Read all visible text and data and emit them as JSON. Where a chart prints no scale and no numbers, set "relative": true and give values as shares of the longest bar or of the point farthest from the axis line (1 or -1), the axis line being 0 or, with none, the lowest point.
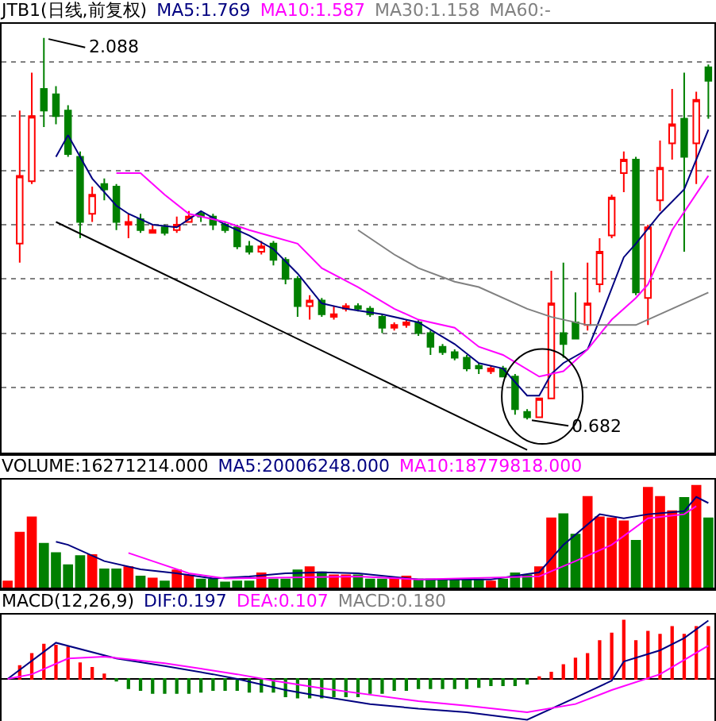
{
  "chart_data": [
    {
      "type": "candlestick",
      "title": "JTB1(日线,前复权)",
      "grid": "y",
      "ylim": [
        0.56,
        2.14
      ],
      "yticks": [
        {
          "value": 0.8,
          "label": null
        },
        {
          "value": 1.0,
          "label": null
        },
        {
          "value": 1.2,
          "label": null
        },
        {
          "value": 1.4,
          "label": null
        },
        {
          "value": 1.6,
          "label": null
        },
        {
          "value": 1.8,
          "label": null
        },
        {
          "value": 2.0,
          "label": null
        }
      ],
      "categories": [
        null,
        null,
        null,
        null,
        null,
        null,
        null,
        null,
        null,
        null,
        null,
        null,
        null,
        null,
        null,
        null,
        null,
        null,
        null,
        null,
        null,
        null,
        null,
        null,
        null,
        null,
        null,
        null,
        null,
        null,
        null,
        null,
        null,
        null,
        null,
        null,
        null,
        null,
        null,
        null,
        null,
        null,
        null,
        null,
        null,
        null,
        null,
        null,
        null,
        null,
        null,
        null,
        null,
        null,
        null,
        null,
        null,
        null,
        null
      ],
      "ohlc": [
        null,
        [
          1.33,
          1.82,
          1.26,
          1.58
        ],
        [
          1.56,
          1.96,
          1.55,
          1.8
        ],
        [
          1.9,
          2.088,
          1.76,
          1.82
        ],
        [
          1.88,
          1.91,
          1.77,
          1.8
        ],
        [
          1.82,
          1.84,
          1.65,
          1.66
        ],
        [
          1.65,
          1.67,
          1.35,
          1.41
        ],
        [
          1.44,
          1.54,
          1.41,
          1.51
        ],
        [
          1.55,
          1.57,
          1.49,
          1.53
        ],
        [
          1.54,
          1.55,
          1.38,
          1.41
        ],
        [
          1.4,
          1.44,
          1.35,
          1.41
        ],
        [
          1.42,
          1.44,
          1.37,
          1.38
        ],
        [
          1.37,
          1.4,
          1.37,
          1.38
        ],
        [
          1.39,
          1.4,
          1.36,
          1.37
        ],
        [
          1.38,
          1.43,
          1.37,
          1.4
        ],
        [
          1.41,
          1.45,
          1.41,
          1.43
        ],
        [
          1.44,
          1.45,
          1.41,
          1.43
        ],
        [
          1.43,
          1.44,
          1.38,
          1.4
        ],
        [
          1.4,
          1.41,
          1.37,
          1.38
        ],
        [
          1.39,
          1.4,
          1.31,
          1.32
        ],
        [
          1.32,
          1.34,
          1.29,
          1.3
        ],
        [
          1.3,
          1.34,
          1.29,
          1.32
        ],
        [
          1.33,
          1.34,
          1.25,
          1.27
        ],
        [
          1.27,
          1.28,
          1.18,
          1.2
        ],
        [
          1.2,
          1.21,
          1.06,
          1.1
        ],
        [
          1.1,
          1.14,
          1.05,
          1.12
        ],
        [
          1.12,
          1.13,
          1.06,
          1.07
        ],
        [
          1.06,
          1.1,
          1.05,
          1.07
        ],
        [
          1.09,
          1.11,
          1.08,
          1.1
        ],
        [
          1.1,
          1.11,
          1.08,
          1.09
        ],
        [
          1.09,
          1.1,
          1.06,
          1.07
        ],
        [
          1.06,
          1.07,
          1.0,
          1.02
        ],
        [
          1.02,
          1.04,
          1.01,
          1.03
        ],
        [
          1.03,
          1.05,
          1.02,
          1.04
        ],
        [
          1.04,
          1.05,
          0.99,
          1.0
        ],
        [
          1.0,
          1.01,
          0.92,
          0.95
        ],
        [
          0.95,
          0.96,
          0.92,
          0.93
        ],
        [
          0.93,
          0.94,
          0.9,
          0.91
        ],
        [
          0.91,
          0.92,
          0.86,
          0.87
        ],
        [
          0.88,
          0.89,
          0.85,
          0.87
        ],
        [
          0.86,
          0.88,
          0.85,
          0.87
        ],
        [
          0.87,
          0.88,
          0.84,
          0.84
        ],
        [
          0.84,
          0.85,
          0.7,
          0.72
        ],
        [
          0.71,
          0.72,
          0.682,
          0.69
        ],
        [
          0.69,
          0.76,
          0.69,
          0.76
        ],
        [
          0.76,
          1.23,
          0.76,
          1.11
        ],
        [
          1.0,
          1.26,
          0.91,
          0.96
        ],
        [
          1.04,
          1.15,
          0.98,
          0.98
        ],
        [
          1.03,
          1.26,
          1.01,
          1.11
        ],
        [
          1.18,
          1.35,
          1.15,
          1.3
        ],
        [
          1.36,
          1.51,
          1.35,
          1.5
        ],
        [
          1.59,
          1.67,
          1.52,
          1.64
        ],
        [
          1.64,
          1.65,
          1.14,
          1.15
        ],
        [
          1.13,
          1.4,
          1.03,
          1.39
        ],
        [
          1.49,
          1.71,
          1.45,
          1.61
        ],
        [
          1.7,
          1.9,
          1.64,
          1.77
        ],
        [
          1.79,
          1.96,
          1.3,
          1.65
        ],
        [
          1.7,
          1.89,
          1.55,
          1.86
        ],
        [
          1.98,
          1.99,
          1.79,
          1.93
        ]
      ],
      "colors": [
        null,
        "#ff0000",
        "#ff0000",
        "#008000",
        "#008000",
        "#008000",
        "#008000",
        "#ff0000",
        "#008000",
        "#008000",
        "#ff0000",
        "#008000",
        "#ff0000",
        "#008000",
        "#ff0000",
        "#ff0000",
        "#008000",
        "#008000",
        "#008000",
        "#008000",
        "#008000",
        "#ff0000",
        "#008000",
        "#008000",
        "#008000",
        "#ff0000",
        "#008000",
        "#ff0000",
        "#ff0000",
        "#008000",
        "#008000",
        "#008000",
        "#ff0000",
        "#ff0000",
        "#008000",
        "#008000",
        "#008000",
        "#008000",
        "#008000",
        "#008000",
        "#ff0000",
        "#008000",
        "#008000",
        "#008000",
        "#ff0000",
        "#ff0000",
        "#008000",
        "#008000",
        "#ff0000",
        "#ff0000",
        "#ff0000",
        "#ff0000",
        "#008000",
        "#ff0000",
        "#ff0000",
        "#ff0000",
        "#008000",
        "#ff0000",
        "#008000"
      ],
      "series": [
        {
          "name": "MA5:1.769",
          "type": "line",
          "color": "#000080",
          "values": [
            null,
            null,
            null,
            null,
            1.65,
            1.73,
            null,
            1.57,
            null,
            1.47,
            1.44,
            null,
            1.4,
            null,
            1.39,
            null,
            1.45,
            null,
            1.4,
            null,
            1.36,
            null,
            1.31,
            null,
            1.22,
            null,
            1.11,
            null,
            1.09,
            null,
            null,
            1.07,
            null,
            null,
            1.04,
            null,
            null,
            0.96,
            null,
            0.89,
            null,
            0.87,
            null,
            0.77,
            0.77,
            0.85,
            0.89,
            null,
            0.94,
            1.05,
            null,
            1.28,
            1.33,
            null,
            1.44,
            null,
            1.53,
            null,
            1.75
          ]
        },
        {
          "name": "MA10:1.587",
          "type": "line",
          "color": "#ff00ff",
          "values": [
            null,
            null,
            null,
            null,
            null,
            null,
            null,
            null,
            null,
            1.59,
            null,
            1.59,
            null,
            1.51,
            null,
            1.44,
            null,
            null,
            1.41,
            null,
            1.38,
            null,
            null,
            null,
            1.33,
            null,
            1.24,
            null,
            null,
            1.17,
            null,
            null,
            1.09,
            null,
            1.05,
            null,
            null,
            1.02,
            null,
            0.95,
            null,
            0.92,
            null,
            null,
            0.84,
            null,
            0.86,
            null,
            0.94,
            null,
            1.05,
            null,
            1.13,
            1.18,
            null,
            1.38,
            null,
            null,
            1.58
          ]
        },
        {
          "name": "MA30:1.158",
          "type": "line",
          "color": "#808080",
          "values": [
            null,
            null,
            null,
            null,
            null,
            null,
            null,
            null,
            null,
            null,
            null,
            null,
            null,
            null,
            null,
            null,
            null,
            null,
            null,
            null,
            null,
            null,
            null,
            null,
            null,
            null,
            null,
            null,
            null,
            1.38,
            null,
            null,
            1.29,
            null,
            1.24,
            null,
            null,
            1.19,
            null,
            1.17,
            null,
            null,
            null,
            1.09,
            null,
            1.06,
            null,
            null,
            1.03,
            null,
            null,
            null,
            1.03,
            null,
            null,
            1.09,
            null,
            null,
            1.15
          ]
        },
        {
          "type": "line",
          "color": "#000000",
          "values": [
            null,
            null,
            null,
            null,
            1.41,
            null,
            null,
            null,
            null,
            null,
            null,
            null,
            null,
            null,
            null,
            null,
            null,
            null,
            null,
            null,
            null,
            null,
            null,
            null,
            null,
            null,
            null,
            null,
            null,
            null,
            null,
            null,
            null,
            null,
            null,
            null,
            null,
            null,
            null,
            null,
            null,
            null,
            null,
            0.57,
            null,
            null,
            null,
            null,
            null,
            null,
            null,
            null,
            null,
            null,
            null,
            null,
            null,
            null,
            null
          ]
        }
      ],
      "annotations": [
        "MA60:-",
        "2.088",
        "0.682"
      ]
    },
    {
      "type": "bar",
      "title": "VOLUME:16271214.000",
      "relative": true,
      "categories": [
        null,
        null,
        null,
        null,
        null,
        null,
        null,
        null,
        null,
        null,
        null,
        null,
        null,
        null,
        null,
        null,
        null,
        null,
        null,
        null,
        null,
        null,
        null,
        null,
        null,
        null,
        null,
        null,
        null,
        null,
        null,
        null,
        null,
        null,
        null,
        null,
        null,
        null,
        null,
        null,
        null,
        null,
        null,
        null,
        null,
        null,
        null,
        null,
        null,
        null,
        null,
        null,
        null,
        null,
        null,
        null,
        null,
        null,
        null
      ],
      "series": [
        {
          "type": "bar",
          "colors": [
            "#ff0000",
            "#ff0000",
            "#ff0000",
            "#008000",
            "#008000",
            "#008000",
            "#008000",
            "#ff0000",
            "#008000",
            "#008000",
            "#ff0000",
            "#008000",
            "#ff0000",
            "#008000",
            "#ff0000",
            "#ff0000",
            "#008000",
            "#008000",
            "#008000",
            "#008000",
            "#008000",
            "#ff0000",
            "#008000",
            "#008000",
            "#008000",
            "#ff0000",
            "#008000",
            "#ff0000",
            "#ff0000",
            "#008000",
            "#008000",
            "#008000",
            "#ff0000",
            "#ff0000",
            "#008000",
            "#008000",
            "#008000",
            "#008000",
            "#008000",
            "#008000",
            "#ff0000",
            "#008000",
            "#008000",
            "#008000",
            "#ff0000",
            "#ff0000",
            "#008000",
            "#008000",
            "#ff0000",
            "#ff0000",
            "#ff0000",
            "#ff0000",
            "#008000",
            "#ff0000",
            "#ff0000",
            "#ff0000",
            "#008000",
            "#ff0000",
            "#008000"
          ],
          "values": [
            0.06,
            0.54,
            0.69,
            0.43,
            0.34,
            0.22,
            0.31,
            0.32,
            0.18,
            0.18,
            0.2,
            0.11,
            0.09,
            0.06,
            0.17,
            0.12,
            0.08,
            0.08,
            0.05,
            0.06,
            0.06,
            0.14,
            0.08,
            0.08,
            0.17,
            0.2,
            0.15,
            0.12,
            0.12,
            0.12,
            0.08,
            0.08,
            0.09,
            0.11,
            0.08,
            0.08,
            0.08,
            0.08,
            0.08,
            0.08,
            0.06,
            0.08,
            0.14,
            0.12,
            0.2,
            0.68,
            0.72,
            0.52,
            0.89,
            0.69,
            0.68,
            0.65,
            0.46,
            0.98,
            0.89,
            0.75,
            0.88,
            1,
            0.68
          ]
        },
        {
          "name": "MA5:20006248.000",
          "type": "line",
          "color": "#000080",
          "values": [
            null,
            null,
            null,
            null,
            0.45,
            0.42,
            null,
            null,
            0.26,
            null,
            null,
            0.18,
            null,
            null,
            0.14,
            null,
            null,
            0.09,
            null,
            null,
            0.11,
            null,
            null,
            0.14,
            null,
            null,
            0.15,
            null,
            null,
            0.14,
            null,
            null,
            null,
            null,
            0.08,
            null,
            null,
            null,
            null,
            null,
            0.08,
            null,
            null,
            null,
            0.15,
            null,
            0.42,
            null,
            null,
            0.72,
            null,
            0.68,
            null,
            0.72,
            null,
            null,
            0.75,
            0.89,
            0.83
          ]
        },
        {
          "name": "MA10:18779818.000",
          "type": "line",
          "color": "#ff00ff",
          "values": [
            null,
            null,
            null,
            null,
            null,
            null,
            null,
            null,
            null,
            null,
            0.34,
            null,
            0.26,
            null,
            null,
            0.14,
            null,
            null,
            0.09,
            null,
            null,
            null,
            null,
            null,
            null,
            null,
            null,
            null,
            null,
            0.11,
            null,
            null,
            null,
            null,
            0.08,
            null,
            null,
            null,
            null,
            null,
            null,
            null,
            null,
            null,
            0.11,
            null,
            null,
            0.26,
            null,
            null,
            0.42,
            null,
            null,
            0.68,
            null,
            null,
            0.72,
            0.8,
            null
          ]
        }
      ]
    },
    {
      "type": "bar",
      "title": "MACD(12,26,9)",
      "relative": true,
      "categories": [
        null,
        null,
        null,
        null,
        null,
        null,
        null,
        null,
        null,
        null,
        null,
        null,
        null,
        null,
        null,
        null,
        null,
        null,
        null,
        null,
        null,
        null,
        null,
        null,
        null,
        null,
        null,
        null,
        null,
        null,
        null,
        null,
        null,
        null,
        null,
        null,
        null,
        null,
        null,
        null,
        null,
        null,
        null,
        null,
        null,
        null,
        null,
        null,
        null,
        null,
        null,
        null,
        null,
        null,
        null,
        null,
        null,
        null,
        null
      ],
      "series": [
        {
          "type": "bar",
          "colors": [
            null,
            "#ff0000",
            "#ff0000",
            "#ff0000",
            "#ff0000",
            "#ff0000",
            "#ff0000",
            "#ff0000",
            "#ff0000",
            "#008000",
            "#008000",
            "#008000",
            "#008000",
            "#008000",
            "#008000",
            "#008000",
            "#008000",
            "#008000",
            "#008000",
            "#008000",
            "#008000",
            "#008000",
            "#008000",
            "#008000",
            "#008000",
            "#008000",
            "#008000",
            "#008000",
            "#008000",
            "#008000",
            "#008000",
            "#008000",
            "#008000",
            "#008000",
            "#008000",
            "#008000",
            "#008000",
            "#008000",
            "#008000",
            "#008000",
            "#008000",
            "#008000",
            "#008000",
            "#008000",
            "#ff0000",
            "#ff0000",
            "#ff0000",
            "#ff0000",
            "#ff0000",
            "#ff0000",
            "#ff0000",
            "#ff0000",
            "#ff0000",
            "#ff0000",
            "#ff0000",
            "#ff0000",
            "#ff0000",
            "#ff0000",
            "#ff0000"
          ],
          "values": [
            null,
            0.22,
            0.43,
            0.59,
            0.57,
            0.54,
            0.27,
            0.19,
            0.08,
            -0.03,
            -0.16,
            -0.19,
            -0.24,
            -0.24,
            -0.24,
            -0.24,
            -0.22,
            -0.19,
            -0.19,
            -0.19,
            -0.22,
            -0.22,
            -0.22,
            -0.3,
            -0.32,
            -0.32,
            -0.32,
            -0.3,
            -0.3,
            -0.3,
            -0.24,
            -0.24,
            -0.19,
            -0.19,
            -0.16,
            -0.16,
            -0.16,
            -0.16,
            -0.16,
            -0.14,
            -0.11,
            -0.11,
            -0.11,
            -0.08,
            0.03,
            0.11,
            0.24,
            0.35,
            0.43,
            0.65,
            0.78,
            1,
            0.65,
            0.81,
            0.76,
            0.89,
            0.76,
            0.89,
            0.89
          ]
        },
        {
          "name": "DIF:0.197",
          "type": "line",
          "color": "#000080",
          "values": [
            0,
            null,
            null,
            null,
            0.62,
            null,
            null,
            null,
            null,
            0.35,
            null,
            null,
            null,
            0.22,
            null,
            null,
            null,
            0.08,
            null,
            0,
            null,
            null,
            null,
            -0.19,
            null,
            null,
            -0.3,
            null,
            null,
            null,
            -0.43,
            null,
            null,
            null,
            -0.51,
            null,
            null,
            null,
            -0.57,
            null,
            null,
            null,
            null,
            -0.7,
            null,
            null,
            null,
            -0.32,
            null,
            null,
            -0.03,
            0.3,
            null,
            null,
            0.49,
            null,
            0.7,
            null,
            1
          ]
        },
        {
          "name": "DEA:0.107",
          "type": "line",
          "color": "#ff00ff",
          "values": [
            0,
            null,
            0.08,
            null,
            null,
            0.35,
            null,
            null,
            0.38,
            null,
            null,
            null,
            null,
            0.27,
            null,
            null,
            null,
            null,
            null,
            0.08,
            null,
            null,
            -0.03,
            null,
            null,
            null,
            -0.16,
            null,
            null,
            null,
            -0.27,
            null,
            null,
            null,
            -0.38,
            null,
            null,
            null,
            -0.46,
            null,
            null,
            null,
            null,
            -0.57,
            null,
            null,
            null,
            -0.43,
            null,
            null,
            -0.19,
            null,
            null,
            null,
            0.08,
            null,
            null,
            null,
            0.57
          ]
        }
      ],
      "annotations": [
        "MACD:0.180"
      ]
    }
  ]
}
